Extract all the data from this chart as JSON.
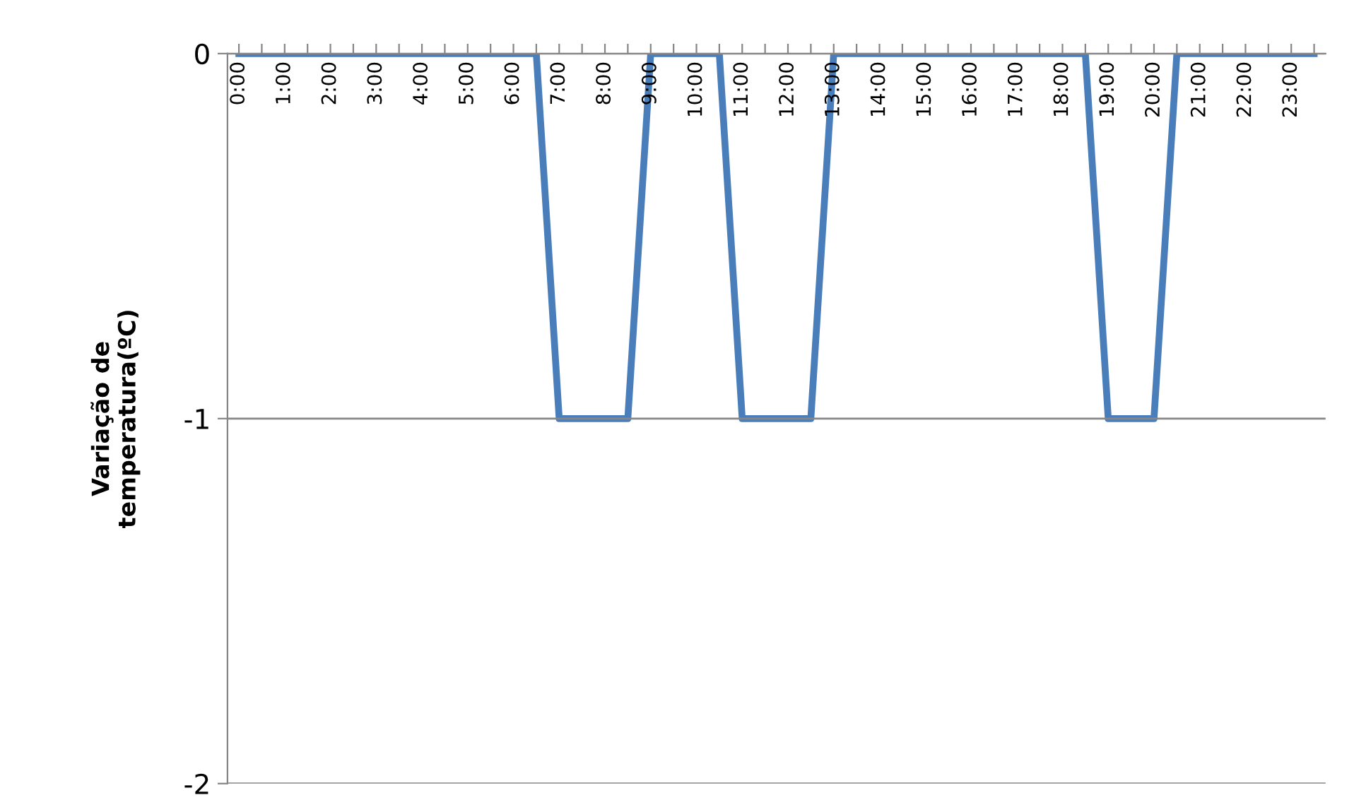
{
  "chart_data": {
    "type": "line",
    "ylabel": "Variação de\ntemperatura(ºC)",
    "categories": [
      "0:00",
      null,
      "1:00",
      null,
      "2:00",
      null,
      "3:00",
      null,
      "4:00",
      null,
      "5:00",
      null,
      "6:00",
      null,
      "7:00",
      null,
      "8:00",
      null,
      "9:00",
      null,
      "10:00",
      null,
      "11:00",
      null,
      "12:00",
      null,
      "13:00",
      null,
      "14:00",
      null,
      "15:00",
      null,
      "16:00",
      null,
      "17:00",
      null,
      "18:00",
      null,
      "19:00",
      null,
      "20:00",
      null,
      "21:00",
      null,
      "22:00",
      null,
      "23:00",
      null
    ],
    "series": [
      {
        "color": "#4a7ebb",
        "values": [
          0,
          0,
          0,
          0,
          0,
          0,
          0,
          0,
          0,
          0,
          0,
          0,
          0,
          0,
          -1,
          -1,
          -1,
          -1,
          0,
          0,
          0,
          0,
          -1,
          -1,
          -1,
          -1,
          0,
          0,
          0,
          0,
          0,
          0,
          0,
          0,
          0,
          0,
          0,
          0,
          -1,
          -1,
          -1,
          0,
          0,
          0,
          0,
          0,
          0,
          0
        ]
      }
    ],
    "ylim": [
      -2,
      0
    ],
    "yticks": [
      {
        "value": -2,
        "label": "-2"
      },
      {
        "value": -1,
        "label": "-1"
      },
      0
    ],
    "grid": "y",
    "marker": "none",
    "line_style": "solid"
  }
}
